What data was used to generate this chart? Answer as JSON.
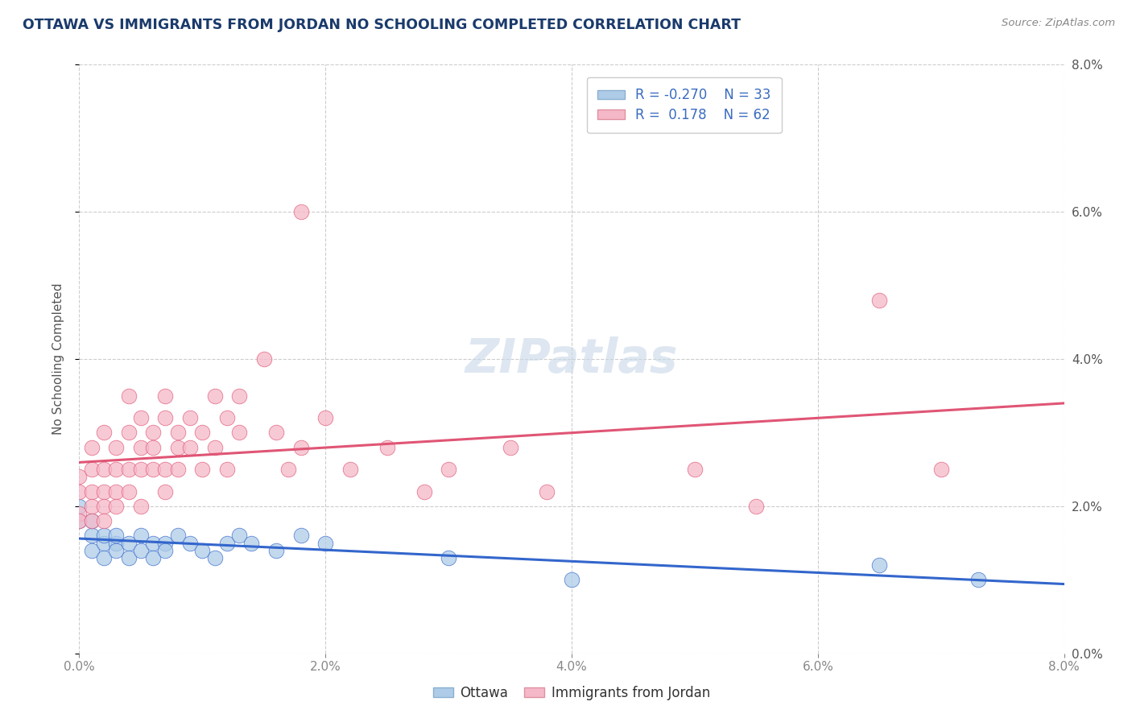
{
  "title": "OTTAWA VS IMMIGRANTS FROM JORDAN NO SCHOOLING COMPLETED CORRELATION CHART",
  "source": "Source: ZipAtlas.com",
  "ylabel": "No Schooling Completed",
  "legend_ottawa": "Ottawa",
  "legend_jordan": "Immigrants from Jordan",
  "r_ottawa": -0.27,
  "n_ottawa": 33,
  "r_jordan": 0.178,
  "n_jordan": 62,
  "ottawa_color": "#aecce8",
  "jordan_color": "#f5b8c8",
  "ottawa_line_color": "#3366cc",
  "jordan_line_color": "#e05575",
  "title_color": "#1a3a6b",
  "xlim": [
    0.0,
    0.08
  ],
  "ylim": [
    0.0,
    0.08
  ],
  "ytick_values": [
    0.0,
    0.02,
    0.04,
    0.06,
    0.08
  ],
  "xtick_values": [
    0.0,
    0.02,
    0.04,
    0.06,
    0.08
  ],
  "ottawa_points": [
    [
      0.0,
      0.02
    ],
    [
      0.0,
      0.018
    ],
    [
      0.001,
      0.016
    ],
    [
      0.001,
      0.014
    ],
    [
      0.001,
      0.018
    ],
    [
      0.002,
      0.015
    ],
    [
      0.002,
      0.013
    ],
    [
      0.002,
      0.016
    ],
    [
      0.003,
      0.015
    ],
    [
      0.003,
      0.014
    ],
    [
      0.003,
      0.016
    ],
    [
      0.004,
      0.015
    ],
    [
      0.004,
      0.013
    ],
    [
      0.005,
      0.016
    ],
    [
      0.005,
      0.014
    ],
    [
      0.006,
      0.015
    ],
    [
      0.006,
      0.013
    ],
    [
      0.007,
      0.015
    ],
    [
      0.007,
      0.014
    ],
    [
      0.008,
      0.016
    ],
    [
      0.009,
      0.015
    ],
    [
      0.01,
      0.014
    ],
    [
      0.011,
      0.013
    ],
    [
      0.012,
      0.015
    ],
    [
      0.013,
      0.016
    ],
    [
      0.014,
      0.015
    ],
    [
      0.016,
      0.014
    ],
    [
      0.018,
      0.016
    ],
    [
      0.02,
      0.015
    ],
    [
      0.03,
      0.013
    ],
    [
      0.04,
      0.01
    ],
    [
      0.065,
      0.012
    ],
    [
      0.073,
      0.01
    ]
  ],
  "jordan_points": [
    [
      0.0,
      0.022
    ],
    [
      0.0,
      0.019
    ],
    [
      0.0,
      0.024
    ],
    [
      0.0,
      0.018
    ],
    [
      0.001,
      0.022
    ],
    [
      0.001,
      0.02
    ],
    [
      0.001,
      0.025
    ],
    [
      0.001,
      0.018
    ],
    [
      0.001,
      0.028
    ],
    [
      0.002,
      0.022
    ],
    [
      0.002,
      0.025
    ],
    [
      0.002,
      0.02
    ],
    [
      0.002,
      0.03
    ],
    [
      0.002,
      0.018
    ],
    [
      0.003,
      0.025
    ],
    [
      0.003,
      0.022
    ],
    [
      0.003,
      0.028
    ],
    [
      0.003,
      0.02
    ],
    [
      0.004,
      0.03
    ],
    [
      0.004,
      0.025
    ],
    [
      0.004,
      0.022
    ],
    [
      0.004,
      0.035
    ],
    [
      0.005,
      0.028
    ],
    [
      0.005,
      0.025
    ],
    [
      0.005,
      0.032
    ],
    [
      0.005,
      0.02
    ],
    [
      0.006,
      0.03
    ],
    [
      0.006,
      0.025
    ],
    [
      0.006,
      0.028
    ],
    [
      0.007,
      0.032
    ],
    [
      0.007,
      0.025
    ],
    [
      0.007,
      0.022
    ],
    [
      0.007,
      0.035
    ],
    [
      0.008,
      0.028
    ],
    [
      0.008,
      0.03
    ],
    [
      0.008,
      0.025
    ],
    [
      0.009,
      0.032
    ],
    [
      0.009,
      0.028
    ],
    [
      0.01,
      0.03
    ],
    [
      0.01,
      0.025
    ],
    [
      0.011,
      0.035
    ],
    [
      0.011,
      0.028
    ],
    [
      0.012,
      0.032
    ],
    [
      0.012,
      0.025
    ],
    [
      0.013,
      0.03
    ],
    [
      0.013,
      0.035
    ],
    [
      0.015,
      0.04
    ],
    [
      0.016,
      0.03
    ],
    [
      0.017,
      0.025
    ],
    [
      0.018,
      0.028
    ],
    [
      0.018,
      0.06
    ],
    [
      0.02,
      0.032
    ],
    [
      0.022,
      0.025
    ],
    [
      0.025,
      0.028
    ],
    [
      0.028,
      0.022
    ],
    [
      0.03,
      0.025
    ],
    [
      0.035,
      0.028
    ],
    [
      0.038,
      0.022
    ],
    [
      0.05,
      0.025
    ],
    [
      0.055,
      0.02
    ],
    [
      0.065,
      0.048
    ],
    [
      0.07,
      0.025
    ]
  ]
}
